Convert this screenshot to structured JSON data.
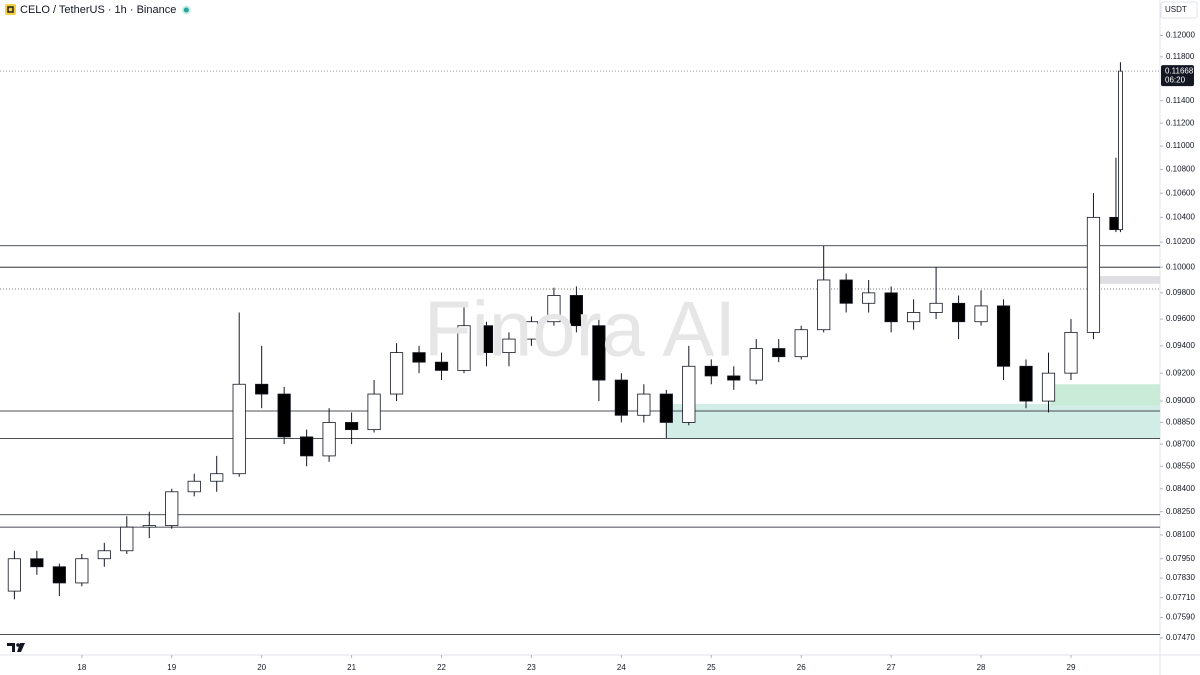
{
  "chart_data": {
    "type": "candlestick",
    "title": "CELO / TetherUS · 1h · Binance",
    "currency": "USDT",
    "watermark": "Finora AI",
    "log_scale": true,
    "up_color": "#ffffff",
    "down_color": "#000000",
    "x": [
      17.25,
      17.5,
      17.75,
      18,
      18.25,
      18.5,
      18.75,
      19,
      19.25,
      19.5,
      19.75,
      20,
      20.25,
      20.5,
      20.75,
      21,
      21.25,
      21.5,
      21.75,
      22,
      22.25,
      22.5,
      22.75,
      23,
      23.25,
      23.5,
      23.75,
      24,
      24.25,
      24.5,
      24.75,
      25,
      25.25,
      25.5,
      25.75,
      26,
      26.25,
      26.5,
      26.75,
      27,
      27.25,
      27.5,
      27.75,
      28,
      28.25,
      28.5,
      28.75,
      29,
      29.25,
      29.5,
      29.55
    ],
    "open": [
      0.0775,
      0.0795,
      0.079,
      0.078,
      0.0795,
      0.08,
      0.0815,
      0.0816,
      0.0838,
      0.0845,
      0.085,
      0.0912,
      0.0905,
      0.0875,
      0.0862,
      0.0885,
      0.088,
      0.0905,
      0.0935,
      0.0928,
      0.0922,
      0.0955,
      0.0935,
      0.0945,
      0.0958,
      0.0978,
      0.0955,
      0.0915,
      0.089,
      0.0905,
      0.0885,
      0.0925,
      0.0918,
      0.0915,
      0.0938,
      0.0932,
      0.0952,
      0.099,
      0.0972,
      0.098,
      0.0958,
      0.0965,
      0.0972,
      0.0958,
      0.097,
      0.0925,
      0.09,
      0.092,
      0.095,
      0.104,
      0.103
    ],
    "high": [
      0.08,
      0.08,
      0.0792,
      0.0798,
      0.0805,
      0.0822,
      0.0825,
      0.084,
      0.085,
      0.0862,
      0.0965,
      0.094,
      0.091,
      0.088,
      0.0895,
      0.0892,
      0.0915,
      0.0942,
      0.094,
      0.0935,
      0.097,
      0.0958,
      0.095,
      0.0962,
      0.0984,
      0.0985,
      0.096,
      0.092,
      0.0912,
      0.0908,
      0.094,
      0.093,
      0.0925,
      0.0945,
      0.0945,
      0.0955,
      0.1017,
      0.0995,
      0.099,
      0.0985,
      0.0975,
      0.1,
      0.0978,
      0.0982,
      0.0975,
      0.093,
      0.0935,
      0.096,
      0.106,
      0.109,
      0.1175
    ],
    "low": [
      0.077,
      0.0785,
      0.0772,
      0.0778,
      0.079,
      0.0798,
      0.0808,
      0.0814,
      0.0835,
      0.0838,
      0.0848,
      0.0895,
      0.087,
      0.0855,
      0.0858,
      0.087,
      0.0878,
      0.09,
      0.092,
      0.0915,
      0.092,
      0.0925,
      0.0925,
      0.094,
      0.0955,
      0.095,
      0.09,
      0.0885,
      0.0885,
      0.0874,
      0.0883,
      0.0912,
      0.0908,
      0.0912,
      0.0928,
      0.093,
      0.095,
      0.0965,
      0.0965,
      0.095,
      0.0952,
      0.096,
      0.0945,
      0.0955,
      0.0915,
      0.0895,
      0.0892,
      0.0915,
      0.0945,
      0.1028,
      0.1028
    ],
    "close": [
      0.0795,
      0.079,
      0.078,
      0.0795,
      0.08,
      0.0815,
      0.0816,
      0.0838,
      0.0845,
      0.085,
      0.0912,
      0.0905,
      0.0875,
      0.0862,
      0.0885,
      0.088,
      0.0905,
      0.0935,
      0.0928,
      0.0922,
      0.0955,
      0.0935,
      0.0945,
      0.0958,
      0.0978,
      0.0955,
      0.0915,
      0.089,
      0.0905,
      0.0885,
      0.0925,
      0.0918,
      0.0915,
      0.0938,
      0.0932,
      0.0952,
      0.099,
      0.0972,
      0.098,
      0.0958,
      0.0965,
      0.0972,
      0.0958,
      0.097,
      0.0925,
      0.09,
      0.092,
      0.095,
      0.104,
      0.103,
      0.11668
    ],
    "countdown": "06:20",
    "xlim": [
      17.09,
      29.99
    ],
    "xticks": [
      18,
      19,
      20,
      21,
      22,
      23,
      24,
      25,
      26,
      27,
      28,
      29
    ],
    "ylim": [
      0.0737,
      0.1234
    ],
    "yticks": [
      {
        "value": 0.12,
        "label": "0.12000"
      },
      {
        "value": 0.118,
        "label": "0.11800"
      },
      {
        "value": 0.114,
        "label": "0.11400"
      },
      {
        "value": 0.112,
        "label": "0.11200"
      },
      {
        "value": 0.11,
        "label": "0.11000"
      },
      {
        "value": 0.108,
        "label": "0.10800"
      },
      {
        "value": 0.106,
        "label": "0.10600"
      },
      {
        "value": 0.104,
        "label": "0.10400"
      },
      {
        "value": 0.102,
        "label": "0.10200"
      },
      {
        "value": 0.1,
        "label": "0.10000"
      },
      {
        "value": 0.098,
        "label": "0.09800"
      },
      {
        "value": 0.096,
        "label": "0.09600"
      },
      {
        "value": 0.094,
        "label": "0.09400"
      },
      {
        "value": 0.092,
        "label": "0.09200"
      },
      {
        "value": 0.09,
        "label": "0.09000"
      },
      {
        "value": 0.0885,
        "label": "0.08850"
      },
      {
        "value": 0.087,
        "label": "0.08700"
      },
      {
        "value": 0.0855,
        "label": "0.08550"
      },
      {
        "value": 0.084,
        "label": "0.08400"
      },
      {
        "value": 0.0825,
        "label": "0.08250"
      },
      {
        "value": 0.081,
        "label": "0.08100"
      },
      {
        "value": 0.0795,
        "label": "0.07950"
      },
      {
        "value": 0.0783,
        "label": "0.07830"
      },
      {
        "value": 0.0771,
        "label": "0.07710"
      },
      {
        "value": 0.0759,
        "label": "0.07590"
      },
      {
        "value": 0.0747,
        "label": "0.07470"
      }
    ],
    "levels": [
      0.1017,
      0.1,
      0.0893,
      0.0874,
      0.0823,
      0.0815,
      0.0749
    ],
    "dotted_levels": [
      0.0983
    ],
    "zones": [
      {
        "from": 24.51,
        "range": [
          0.0874,
          0.0898
        ],
        "color": "#cdebe2"
      },
      {
        "from": 28.77,
        "range": [
          0.0897,
          0.0912
        ],
        "color": "#c3e9d3"
      },
      {
        "from": 29.32,
        "range": [
          0.0987,
          0.0993
        ],
        "color": "#dcdce0"
      }
    ]
  }
}
